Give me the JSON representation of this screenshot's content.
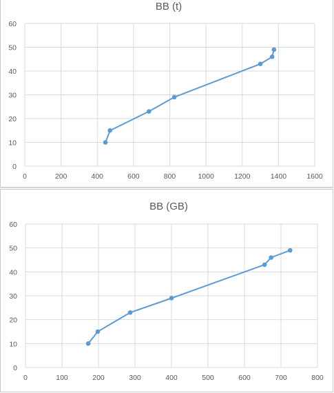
{
  "chart_data": [
    {
      "type": "scatter",
      "title": "BB (t)",
      "xlabel": "",
      "ylabel": "",
      "xlim": [
        0,
        1600
      ],
      "ylim": [
        0,
        60
      ],
      "xticks": [
        "0",
        "200",
        "400",
        "600",
        "800",
        "1000",
        "1200",
        "1400",
        "1600"
      ],
      "yticks": [
        "0",
        "10",
        "20",
        "30",
        "40",
        "50",
        "60"
      ],
      "grid": true,
      "series": [
        {
          "x": [
            445,
            470,
            685,
            825,
            1300,
            1365,
            1375
          ],
          "y": [
            10,
            15,
            23,
            29,
            43,
            46,
            49
          ]
        }
      ],
      "color": "#5b9bd5"
    },
    {
      "type": "scatter",
      "title": "BB (GB)",
      "xlabel": "",
      "ylabel": "",
      "xlim": [
        0,
        800
      ],
      "ylim": [
        0,
        60
      ],
      "xticks": [
        "0",
        "100",
        "200",
        "300",
        "400",
        "500",
        "600",
        "700",
        "800"
      ],
      "yticks": [
        "0",
        "10",
        "20",
        "30",
        "40",
        "50",
        "60"
      ],
      "grid": true,
      "series": [
        {
          "x": [
            172,
            198,
            287,
            400,
            655,
            673,
            725
          ],
          "y": [
            10,
            15,
            23,
            29,
            43,
            46,
            49
          ]
        }
      ],
      "color": "#5b9bd5"
    }
  ]
}
